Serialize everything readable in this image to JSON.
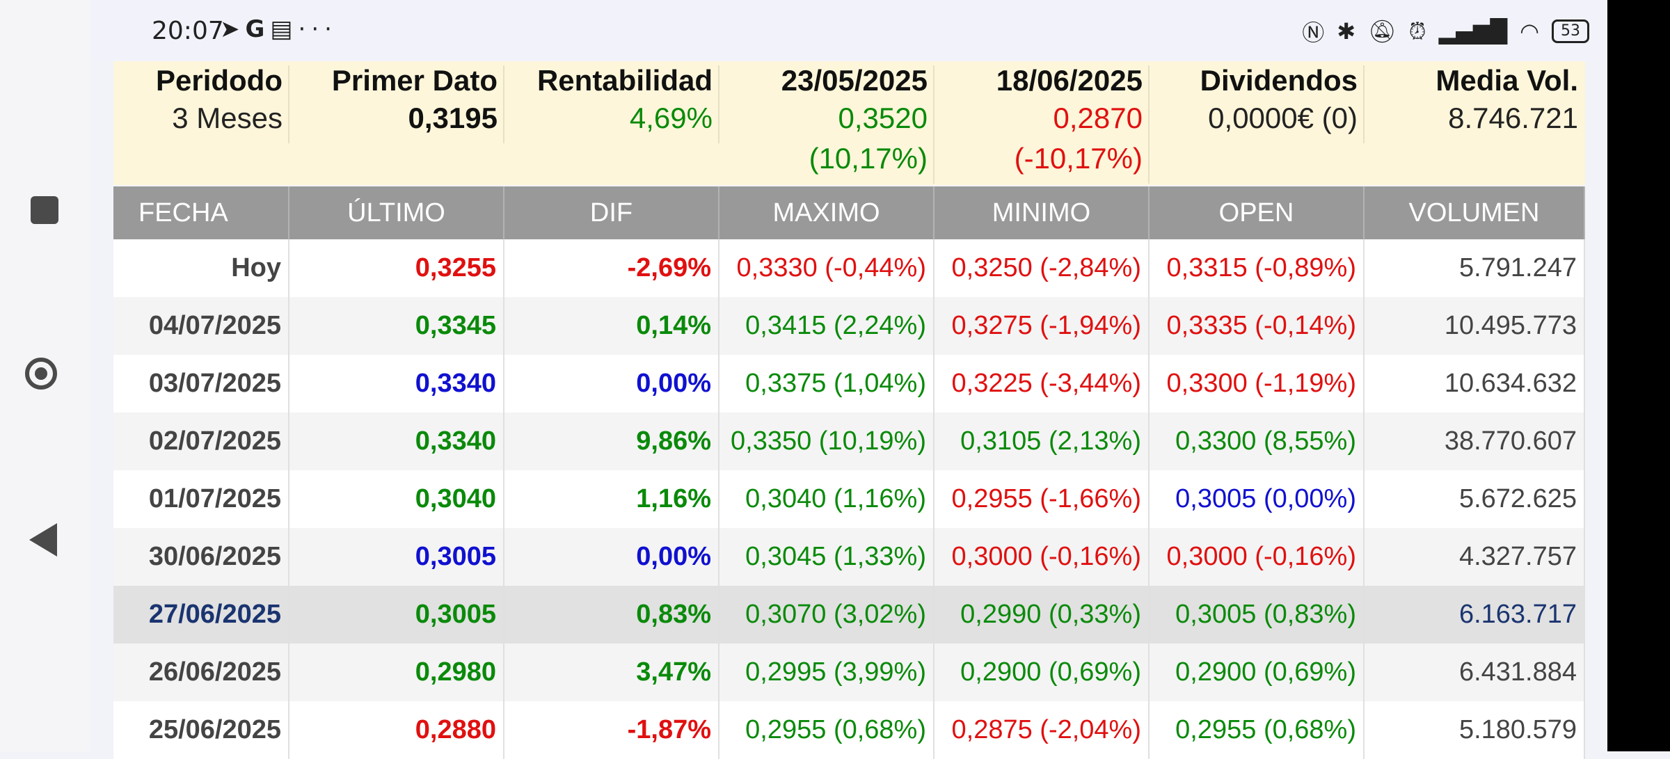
{
  "status_bar": {
    "time": "20:07",
    "left_icons": [
      "telegram-icon",
      "google-icon",
      "calendar-icon",
      "more-icon"
    ],
    "right_icons": [
      "nfc-icon",
      "bluetooth-icon",
      "mute-icon",
      "alarm-icon",
      "signal-icon",
      "wifi-icon"
    ],
    "battery": "53"
  },
  "summary": {
    "columns": [
      {
        "header": "Peridodo",
        "value": "3 Meses",
        "pct": "",
        "color": "#222222",
        "bold": false
      },
      {
        "header": "Primer Dato",
        "value": "0,3195",
        "pct": "",
        "color": "#111111",
        "bold": true
      },
      {
        "header": "Rentabilidad",
        "value": "4,69%",
        "pct": "",
        "color": "#0a8a0a",
        "bold": false
      },
      {
        "header": "23/05/2025",
        "value": "0,3520",
        "pct": "(10,17%)",
        "color": "#0a8a0a",
        "bold": false
      },
      {
        "header": "18/06/2025",
        "value": "0,2870",
        "pct": "(-10,17%)",
        "color": "#e01010",
        "bold": false
      },
      {
        "header": "Dividendos",
        "value": "0,0000€ (0)",
        "pct": "",
        "color": "#222222",
        "bold": false
      },
      {
        "header": "Media Vol.",
        "value": "8.746.721",
        "pct": "",
        "color": "#222222",
        "bold": false
      }
    ]
  },
  "table": {
    "headers": [
      "FECHA",
      "ÚLTIMO",
      "DIF",
      "MAXIMO",
      "MINIMO",
      "OPEN",
      "VOLUMEN"
    ],
    "rows": [
      {
        "fecha": "Hoy",
        "ultimo": "0,3255",
        "dif": "-2,69%",
        "maximo": "0,3330 (-0,44%)",
        "minimo": "0,3250 (-2,84%)",
        "open": "0,3315 (-0,89%)",
        "volumen": "5.791.247",
        "colors": {
          "ultimo": "#e01010",
          "dif": "#e01010",
          "maximo": "#e01010",
          "minimo": "#e01010",
          "open": "#e01010"
        }
      },
      {
        "fecha": "04/07/2025",
        "ultimo": "0,3345",
        "dif": "0,14%",
        "maximo": "0,3415 (2,24%)",
        "minimo": "0,3275 (-1,94%)",
        "open": "0,3335 (-0,14%)",
        "volumen": "10.495.773",
        "colors": {
          "ultimo": "#0a8a0a",
          "dif": "#0a8a0a",
          "maximo": "#0a8a0a",
          "minimo": "#e01010",
          "open": "#e01010"
        }
      },
      {
        "fecha": "03/07/2025",
        "ultimo": "0,3340",
        "dif": "0,00%",
        "maximo": "0,3375 (1,04%)",
        "minimo": "0,3225 (-3,44%)",
        "open": "0,3300 (-1,19%)",
        "volumen": "10.634.632",
        "colors": {
          "ultimo": "#1010d0",
          "dif": "#1010d0",
          "maximo": "#0a8a0a",
          "minimo": "#e01010",
          "open": "#e01010"
        }
      },
      {
        "fecha": "02/07/2025",
        "ultimo": "0,3340",
        "dif": "9,86%",
        "maximo": "0,3350 (10,19%)",
        "minimo": "0,3105 (2,13%)",
        "open": "0,3300 (8,55%)",
        "volumen": "38.770.607",
        "colors": {
          "ultimo": "#0a8a0a",
          "dif": "#0a8a0a",
          "maximo": "#0a8a0a",
          "minimo": "#0a8a0a",
          "open": "#0a8a0a"
        }
      },
      {
        "fecha": "01/07/2025",
        "ultimo": "0,3040",
        "dif": "1,16%",
        "maximo": "0,3040 (1,16%)",
        "minimo": "0,2955 (-1,66%)",
        "open": "0,3005 (0,00%)",
        "volumen": "5.672.625",
        "colors": {
          "ultimo": "#0a8a0a",
          "dif": "#0a8a0a",
          "maximo": "#0a8a0a",
          "minimo": "#e01010",
          "open": "#1010d0"
        }
      },
      {
        "fecha": "30/06/2025",
        "ultimo": "0,3005",
        "dif": "0,00%",
        "maximo": "0,3045 (1,33%)",
        "minimo": "0,3000 (-0,16%)",
        "open": "0,3000 (-0,16%)",
        "volumen": "4.327.757",
        "colors": {
          "ultimo": "#1010d0",
          "dif": "#1010d0",
          "maximo": "#0a8a0a",
          "minimo": "#e01010",
          "open": "#e01010"
        }
      },
      {
        "fecha": "27/06/2025",
        "ultimo": "0,3005",
        "dif": "0,83%",
        "maximo": "0,3070 (3,02%)",
        "minimo": "0,2990 (0,33%)",
        "open": "0,3005 (0,83%)",
        "volumen": "6.163.717",
        "highlighted": true,
        "colors": {
          "ultimo": "#0a8a0a",
          "dif": "#0a8a0a",
          "maximo": "#0a8a0a",
          "minimo": "#0a8a0a",
          "open": "#0a8a0a"
        }
      },
      {
        "fecha": "26/06/2025",
        "ultimo": "0,2980",
        "dif": "3,47%",
        "maximo": "0,2995 (3,99%)",
        "minimo": "0,2900 (0,69%)",
        "open": "0,2900 (0,69%)",
        "volumen": "6.431.884",
        "colors": {
          "ultimo": "#0a8a0a",
          "dif": "#0a8a0a",
          "maximo": "#0a8a0a",
          "minimo": "#0a8a0a",
          "open": "#0a8a0a"
        }
      },
      {
        "fecha": "25/06/2025",
        "ultimo": "0,2880",
        "dif": "-1,87%",
        "maximo": "0,2955 (0,68%)",
        "minimo": "0,2875 (-2,04%)",
        "open": "0,2955 (0,68%)",
        "volumen": "5.180.579",
        "colors": {
          "ultimo": "#e01010",
          "dif": "#e01010",
          "maximo": "#0a8a0a",
          "minimo": "#e01010",
          "open": "#0a8a0a"
        }
      }
    ]
  }
}
